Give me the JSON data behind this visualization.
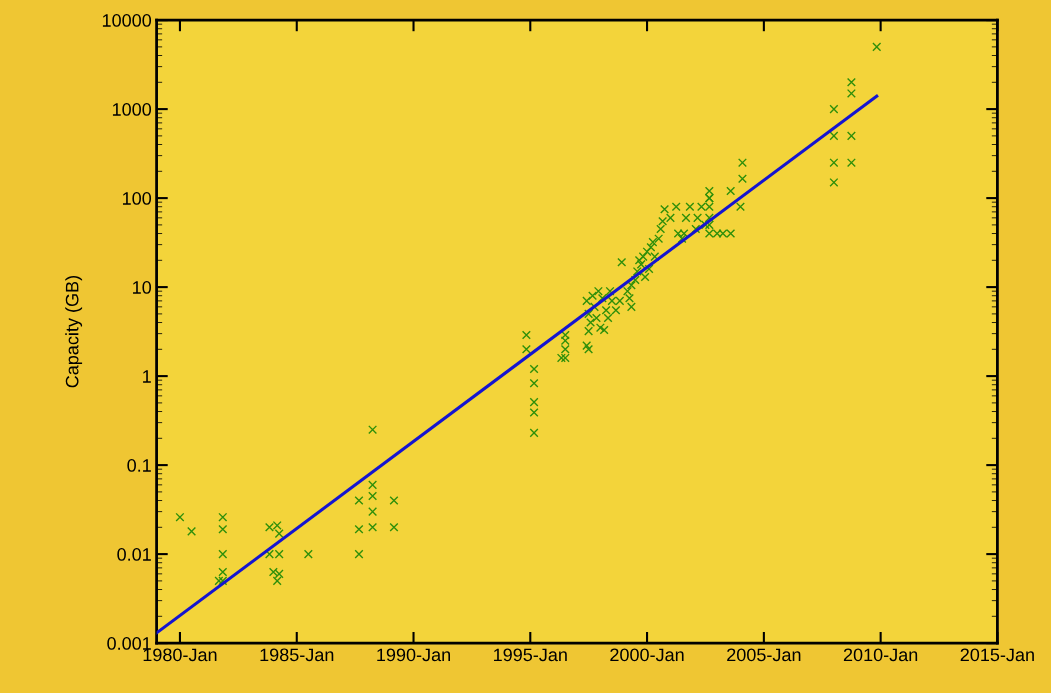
{
  "chart_data": {
    "type": "scatter",
    "ylabel": "Capacity (GB)",
    "log": "y",
    "grid": false,
    "xlim": [
      "1979-01",
      "2015-01"
    ],
    "xticks": [
      {
        "value": "1980-01",
        "label": "1980-Jan"
      },
      {
        "value": "1985-01",
        "label": "1985-Jan"
      },
      {
        "value": "1990-01",
        "label": "1990-Jan"
      },
      {
        "value": "1995-01",
        "label": "1995-Jan"
      },
      {
        "value": "2000-01",
        "label": "2000-Jan"
      },
      {
        "value": "2005-01",
        "label": "2005-Jan"
      },
      {
        "value": "2010-01",
        "label": "2010-Jan"
      },
      {
        "value": "2015-01",
        "label": "2015-Jan"
      }
    ],
    "ylim": [
      0.001,
      10000
    ],
    "yticks": [
      {
        "value": 0.001,
        "label": "0.001"
      },
      {
        "value": 0.01,
        "label": "0.01"
      },
      {
        "value": 0.1,
        "label": "0.1"
      },
      {
        "value": 1,
        "label": "1"
      },
      {
        "value": 10,
        "label": "10"
      },
      {
        "value": 100,
        "label": "100"
      },
      {
        "value": 1000,
        "label": "1000"
      },
      {
        "value": 10000,
        "label": "10000"
      }
    ],
    "series": [
      {
        "marker": "cross",
        "color": "#2f8f0a",
        "x": [
          "1980-01",
          "1980-07",
          "1981-11",
          "1981-11",
          "1981-11",
          "1981-11",
          "1981-11",
          "1981-09",
          "1983-11",
          "1984-03",
          "1984-04",
          "1983-11",
          "1984-04",
          "1984-01",
          "1984-04",
          "1984-03",
          "1985-07",
          "1987-09",
          "1987-09",
          "1987-09",
          "1988-04",
          "1988-04",
          "1988-04",
          "1988-04",
          "1988-04",
          "1989-03",
          "1989-03",
          "1994-11",
          "1994-11",
          "1995-03",
          "1995-03",
          "1995-03",
          "1995-03",
          "1995-03",
          "1996-07",
          "1996-07",
          "1996-07",
          "1996-07",
          "1996-05",
          "1997-07",
          "1997-06",
          "1997-07",
          "1997-08",
          "1997-09",
          "1997-10",
          "1997-11",
          "1998-01",
          "1998-02",
          "1998-04",
          "1998-05",
          "1998-06",
          "1998-07",
          "1998-09",
          "1997-07",
          "1997-06",
          "1997-12",
          "1998-11",
          "1998-03",
          "1998-12",
          "1999-03",
          "1999-04",
          "1999-05",
          "1999-07",
          "1999-08",
          "1999-09",
          "1999-10",
          "1999-11",
          "2000-01",
          "1999-12",
          "2000-02",
          "2000-03",
          "2000-04",
          "2000-05",
          "1999-05",
          "2000-07",
          "2000-08",
          "2000-09",
          "2000-10",
          "2001-01",
          "2001-04",
          "2001-05",
          "2001-07",
          "2001-09",
          "2001-11",
          "2002-02",
          "2002-03",
          "2002-05",
          "2002-07",
          "2001-08",
          "2002-09",
          "2003-01",
          "2003-04",
          "2002-09",
          "2002-09",
          "2002-09",
          "2002-09",
          "2002-09",
          "2002-09",
          "2003-08",
          "2004-01",
          "2004-02",
          "2004-02",
          "2003-08",
          "2008-01",
          "2008-01",
          "2008-01",
          "2008-01",
          "2008-10",
          "2008-10",
          "2008-10",
          "2008-10",
          "2009-11"
        ],
        "values": [
          0.026,
          0.018,
          0.026,
          0.019,
          0.01,
          0.0063,
          0.005,
          0.005,
          0.02,
          0.021,
          0.017,
          0.01,
          0.01,
          0.0063,
          0.006,
          0.005,
          0.01,
          0.04,
          0.019,
          0.01,
          0.25,
          0.06,
          0.045,
          0.03,
          0.02,
          0.04,
          0.02,
          2.9,
          2.0,
          1.2,
          0.83,
          0.51,
          0.39,
          0.23,
          2.9,
          2.5,
          2.0,
          1.6,
          1.6,
          2.0,
          7,
          5,
          4,
          8,
          6,
          4.5,
          3.5,
          7.5,
          5.5,
          4.5,
          9,
          7,
          5.5,
          3.2,
          2.2,
          9,
          7,
          3.3,
          19,
          9,
          7.5,
          10.5,
          12,
          15,
          20,
          18,
          22,
          25,
          13,
          16,
          28,
          32,
          22,
          6,
          35,
          45,
          55,
          75,
          60,
          80,
          40,
          35,
          60,
          80,
          45,
          60,
          80,
          50,
          40,
          100,
          40,
          40,
          120,
          100,
          80,
          60,
          50,
          40,
          120,
          80,
          250,
          165,
          40,
          1000,
          500,
          250,
          150,
          2000,
          1500,
          500,
          250,
          5000
        ]
      },
      {
        "type": "line",
        "marker": "none",
        "line_style": "solid",
        "color": "#1515d0",
        "x": [
          "1979-01",
          "2009-11"
        ],
        "values": [
          0.0013,
          1400
        ]
      }
    ]
  }
}
